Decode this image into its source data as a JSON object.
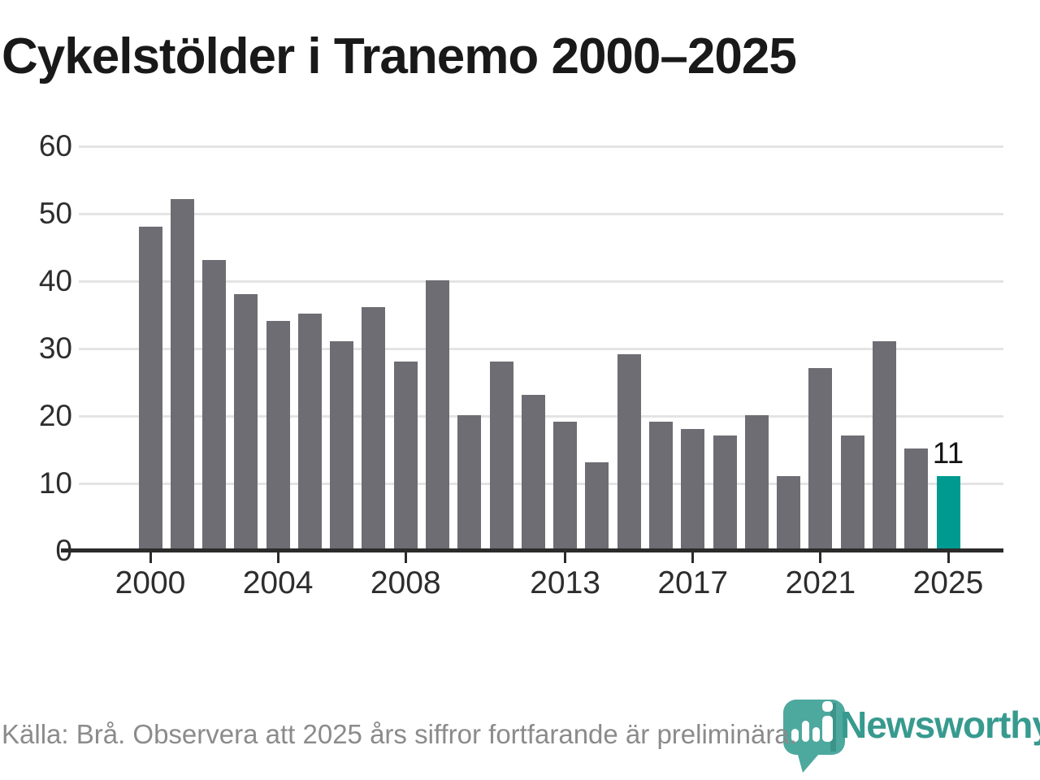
{
  "title": "Cykelstölder i Tranemo 2000–2025",
  "footer": {
    "source_note": "Källa: Brå. Observera att 2025 års siffror fortfarande är preliminära."
  },
  "branding": {
    "logo_text": "Newsworthy",
    "logo_text_color": "#379A8F",
    "icon_color": "#4DA89E",
    "icon_shadow_color": "#2F8279",
    "icon_bars_color": "#FFFFFF"
  },
  "chart_data": {
    "type": "bar",
    "title": "Cykelstölder i Tranemo 2000–2025",
    "x": [
      2000,
      2001,
      2002,
      2003,
      2004,
      2005,
      2006,
      2007,
      2008,
      2009,
      2010,
      2011,
      2012,
      2013,
      2014,
      2015,
      2016,
      2017,
      2018,
      2019,
      2020,
      2021,
      2022,
      2023,
      2024,
      2025
    ],
    "values": [
      48,
      52,
      43,
      38,
      34,
      35,
      31,
      36,
      28,
      40,
      20,
      28,
      23,
      19,
      13,
      29,
      19,
      18,
      17,
      20,
      11,
      27,
      17,
      31,
      15,
      11
    ],
    "highlight_year": 2025,
    "highlight_value_label": "11",
    "xlabel": "",
    "ylabel": "",
    "ylim": [
      0,
      60
    ],
    "yticks": [
      0,
      10,
      20,
      30,
      40,
      50,
      60
    ],
    "xticks": [
      2000,
      2004,
      2008,
      2013,
      2017,
      2021,
      2025
    ],
    "grid": true,
    "legend": "none",
    "colors": {
      "bar": "#6E6D73",
      "highlight": "#009A90",
      "grid": "#E4E4E4",
      "axis": "#2B2B2B",
      "tick_label": "#2D2D2D",
      "value_label": "#141414"
    }
  }
}
